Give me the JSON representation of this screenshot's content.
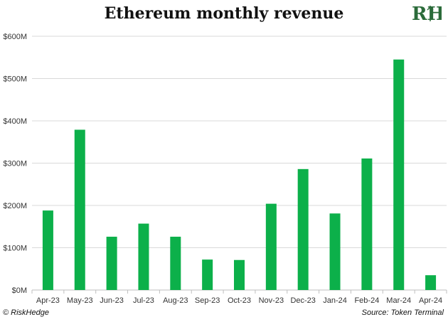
{
  "header": {
    "title": "Ethereum monthly revenue",
    "logo_text": "RH"
  },
  "footer": {
    "copyright": "© RiskHedge",
    "source": "Source: Token Terminal"
  },
  "colors": {
    "bar": "#0cb04a",
    "grid": "#d9d9d9",
    "text": "#333333"
  },
  "chart_data": {
    "type": "bar",
    "title": "Ethereum monthly revenue",
    "categories": [
      "Apr-23",
      "May-23",
      "Jun-23",
      "Jul-23",
      "Aug-23",
      "Sep-23",
      "Oct-23",
      "Nov-23",
      "Dec-23",
      "Jan-24",
      "Feb-24",
      "Mar-24",
      "Apr-24"
    ],
    "values": [
      188,
      379,
      126,
      157,
      126,
      72,
      71,
      204,
      286,
      181,
      311,
      545,
      35
    ],
    "unit": "M",
    "y_ticks": [
      "$0M",
      "$100M",
      "$200M",
      "$300M",
      "$400M",
      "$500M",
      "$600M"
    ],
    "ylim": [
      0,
      600
    ],
    "grid": true,
    "legend": false
  }
}
